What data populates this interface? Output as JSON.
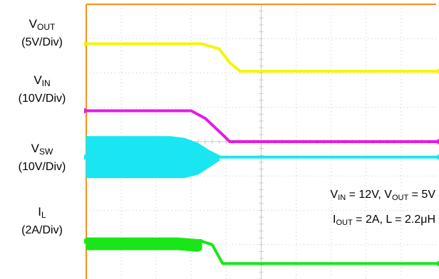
{
  "chart_data": {
    "type": "line",
    "traces": [
      {
        "name": "V",
        "sub": "OUT",
        "scale": "(5V/Div)",
        "color": "#f5f50a",
        "x": [
          0,
          2.2,
          3.3,
          3.8,
          4.1,
          4.4,
          10
        ],
        "y": [
          2.85,
          2.85,
          2.85,
          2.7,
          2.3,
          2.05,
          2.05
        ]
      },
      {
        "name": "V",
        "sub": "IN",
        "scale": "(10V/Div)",
        "color": "#e619e6",
        "x": [
          0,
          2.2,
          3.0,
          3.4,
          3.9,
          4.1,
          10
        ],
        "y": [
          0.9,
          0.9,
          0.9,
          0.68,
          0.2,
          0.0,
          0.0
        ]
      },
      {
        "name": "V",
        "sub": "SW",
        "scale": "(10V/Div)",
        "color": "#19e6f0",
        "x": [
          0,
          2.4,
          3.0,
          3.5,
          3.8,
          4.4,
          10
        ],
        "y": [
          -0.45,
          -0.45,
          -0.45,
          -0.45,
          -0.45,
          -0.45,
          -0.45
        ],
        "switching_envelope": {
          "x": [
            0,
            2.4,
            2.8,
            3.2,
            3.5,
            3.8
          ],
          "hi": [
            0.15,
            0.15,
            0.1,
            -0.05,
            -0.25,
            -0.4
          ],
          "lo": [
            -1.05,
            -1.05,
            -1.05,
            -0.95,
            -0.75,
            -0.55
          ]
        }
      },
      {
        "name": "I",
        "sub": "L",
        "scale": "(2A/Div)",
        "color": "#19e619",
        "x": [
          0,
          3.3,
          3.6,
          3.9,
          10
        ],
        "y": [
          -2.9,
          -2.9,
          -3.0,
          -3.55,
          -3.55
        ],
        "ripple_envelope": {
          "x": [
            0,
            2.6,
            3.2,
            3.3
          ],
          "hi": [
            -2.8,
            -2.8,
            -2.85,
            -2.85
          ],
          "lo": [
            -3.15,
            -3.15,
            -3.2,
            -3.15
          ]
        }
      }
    ],
    "annotation_lines": [
      [
        {
          "t": "V"
        },
        {
          "t": "IN",
          "sub": true
        },
        {
          "t": " = 12V, V"
        },
        {
          "t": "OUT",
          "sub": true
        },
        {
          "t": " = 5V"
        }
      ],
      [
        {
          "t": "I"
        },
        {
          "t": "OUT",
          "sub": true
        },
        {
          "t": " = 2A, L = 2.2"
        },
        {
          "t": "μ"
        },
        {
          "t": "H"
        }
      ]
    ],
    "grid": true,
    "xlim": [
      0,
      10
    ],
    "ylim": [
      -4,
      4
    ],
    "divisions": {
      "x": 10,
      "y": 8
    },
    "colors": {
      "graticule": "#c7c7c7",
      "frame": "#ff8c1a",
      "label_text": "#000000"
    }
  }
}
